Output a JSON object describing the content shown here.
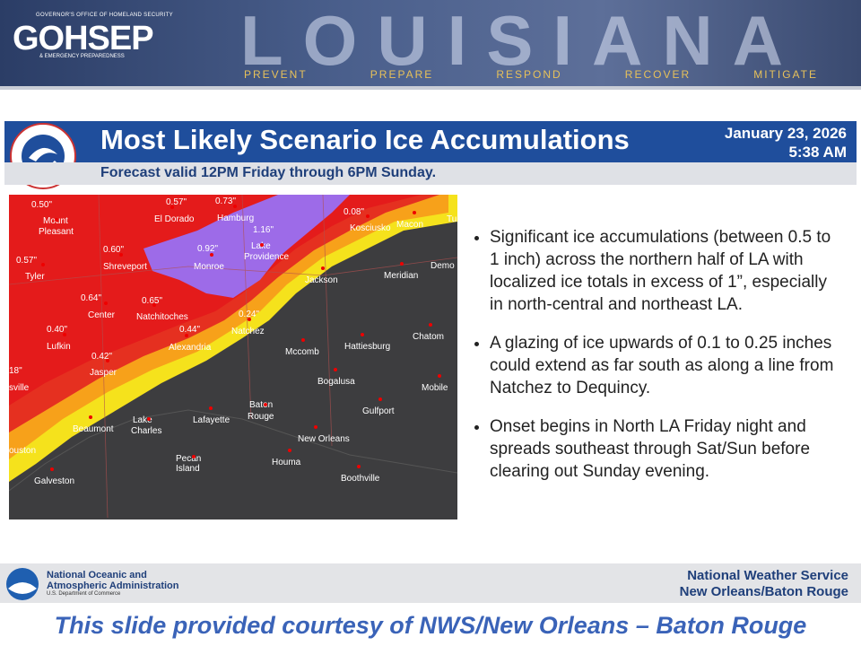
{
  "header": {
    "org_top": "GOVERNOR'S OFFICE OF HOMELAND SECURITY",
    "logo": "GOHSEP",
    "org_bottom": "& EMERGENCY PREPAREDNESS",
    "state": "LOUISIANA",
    "mottos": [
      "PREVENT",
      "PREPARE",
      "RESPOND",
      "RECOVER",
      "MITIGATE"
    ]
  },
  "slide": {
    "title": "Most Likely Scenario Ice Accumulations",
    "date": "January 23, 2026",
    "time": "5:38 AM",
    "subtitle": "Forecast valid 12PM Friday through 6PM Sunday."
  },
  "map_labels": [
    "0.50\"",
    "Mount",
    "Pleasant",
    "0.57\"",
    "Tyler",
    "0.60\"",
    "Shreveport",
    "0.64\"",
    "Center",
    "0.40\"",
    "Lufkin",
    "0.42\"",
    "Jasper",
    "0.65\"",
    "Natchitoches",
    "0.92\"",
    "Monroe",
    "0.44\"",
    "Alexandria",
    "1.16\"",
    "Lake",
    "Providence",
    "0.24\"",
    "Natchez",
    "El Dorado",
    "Hamburg",
    "0.57\"",
    "0.73\"",
    "0.08\"",
    "Kosciusko",
    "Macon",
    "Tu",
    "Jackson",
    "Meridian",
    "Demo",
    "Mccomb",
    "Hattiesburg",
    "Chatom",
    "Bogalusa",
    "Mobile",
    "Baton",
    "Rouge",
    "Gulfport",
    "Lake",
    "Charles",
    "Lafayette",
    "Beaumont",
    "New Orleans",
    "Pecan",
    "Island",
    "Houma",
    "Boothville",
    "Galveston",
    "ouston",
    "18\"",
    "sville"
  ],
  "bullets": [
    "Significant ice accumulations (between 0.5 to 1 inch) across the northern half of LA with localized ice totals in excess of 1”, especially in north-central and northeast LA.",
    "A glazing of ice upwards of 0.1 to 0.25 inches could extend as far south as along a line from Natchez to Dequincy.",
    "Onset begins in North LA Friday night and spreads southeast through Sat/Sun before clearing out Sunday evening."
  ],
  "footer": {
    "noaa_line1": "National Oceanic and",
    "noaa_line2": "Atmospheric Administration",
    "noaa_dept": "U.S. Department of Commerce",
    "nws_line1": "National Weather Service",
    "nws_line2": "New Orleans/Baton Rouge"
  },
  "courtesy": "This slide provided courtesy of NWS/New Orleans – Baton Rouge"
}
